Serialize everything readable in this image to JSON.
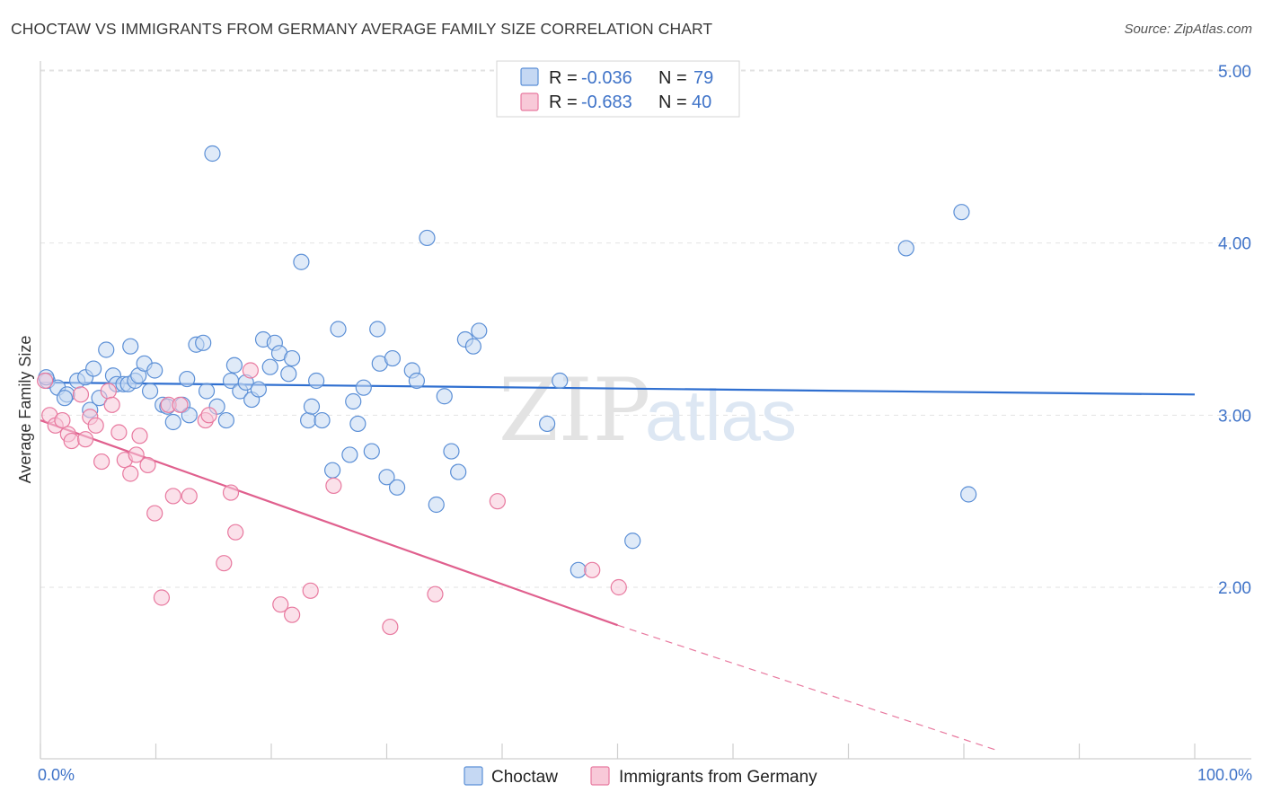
{
  "header": {
    "title": "CHOCTAW VS IMMIGRANTS FROM GERMANY AVERAGE FAMILY SIZE CORRELATION CHART",
    "source": "Source: ZipAtlas.com"
  },
  "watermark": {
    "zip": "ZIP",
    "atlas": "atlas"
  },
  "legend": {
    "rows": [
      {
        "r_label": "R =",
        "r_value": "-0.036",
        "n_label": "N =",
        "n_value": "79",
        "color": "#5b8fd6"
      },
      {
        "r_label": "R =",
        "r_value": "-0.683",
        "n_label": "N =",
        "n_value": "40",
        "color": "#e8799f"
      }
    ]
  },
  "bottom_legend": {
    "series1": "Choctaw",
    "series2": "Immigrants from Germany"
  },
  "chart_data": {
    "type": "scatter",
    "title": "CHOCTAW VS IMMIGRANTS FROM GERMANY AVERAGE FAMILY SIZE CORRELATION CHART",
    "xlabel": "",
    "ylabel": "Average Family Size",
    "xlim": [
      0,
      100
    ],
    "ylim": [
      1.05,
      5.1
    ],
    "x_tick_labels": {
      "min": "0.0%",
      "max": "100.0%"
    },
    "y_ticks": [
      2.0,
      3.0,
      4.0,
      5.0
    ],
    "y_tick_labels": [
      "2.00",
      "3.00",
      "4.00",
      "5.00"
    ],
    "grid": true,
    "series": [
      {
        "name": "Choctaw",
        "color": "#5b8fd6",
        "R": -0.036,
        "N": 79,
        "trend": {
          "x0": 0,
          "y0": 3.19,
          "x1": 100,
          "y1": 3.12
        },
        "points": [
          [
            0.6,
            3.2
          ],
          [
            1.5,
            3.16
          ],
          [
            2.3,
            3.12
          ],
          [
            2.1,
            3.1
          ],
          [
            3.2,
            3.2
          ],
          [
            3.9,
            3.22
          ],
          [
            4.3,
            3.03
          ],
          [
            4.6,
            3.27
          ],
          [
            5.1,
            3.1
          ],
          [
            5.7,
            3.38
          ],
          [
            6.3,
            3.23
          ],
          [
            6.6,
            3.18
          ],
          [
            7.2,
            3.18
          ],
          [
            7.6,
            3.18
          ],
          [
            7.8,
            3.4
          ],
          [
            8.2,
            3.2
          ],
          [
            8.5,
            3.23
          ],
          [
            9.0,
            3.3
          ],
          [
            9.5,
            3.14
          ],
          [
            9.9,
            3.26
          ],
          [
            10.6,
            3.06
          ],
          [
            11.0,
            3.05
          ],
          [
            11.5,
            2.96
          ],
          [
            12.3,
            3.06
          ],
          [
            12.7,
            3.21
          ],
          [
            12.9,
            3.0
          ],
          [
            13.5,
            3.41
          ],
          [
            14.1,
            3.42
          ],
          [
            14.4,
            3.14
          ],
          [
            15.3,
            3.05
          ],
          [
            16.1,
            2.97
          ],
          [
            16.5,
            3.2
          ],
          [
            16.8,
            3.29
          ],
          [
            17.3,
            3.14
          ],
          [
            17.8,
            3.19
          ],
          [
            18.3,
            3.09
          ],
          [
            18.9,
            3.15
          ],
          [
            19.3,
            3.44
          ],
          [
            19.9,
            3.28
          ],
          [
            20.3,
            3.42
          ],
          [
            20.7,
            3.36
          ],
          [
            21.5,
            3.24
          ],
          [
            21.8,
            3.33
          ],
          [
            22.6,
            3.89
          ],
          [
            23.2,
            2.97
          ],
          [
            23.5,
            3.05
          ],
          [
            23.9,
            3.2
          ],
          [
            24.4,
            2.97
          ],
          [
            25.3,
            2.68
          ],
          [
            25.8,
            3.5
          ],
          [
            26.8,
            2.77
          ],
          [
            27.1,
            3.08
          ],
          [
            27.5,
            2.95
          ],
          [
            28.0,
            3.16
          ],
          [
            28.7,
            2.79
          ],
          [
            29.2,
            3.5
          ],
          [
            29.4,
            3.3
          ],
          [
            30.0,
            2.64
          ],
          [
            30.5,
            3.33
          ],
          [
            30.9,
            2.58
          ],
          [
            32.2,
            3.26
          ],
          [
            32.6,
            3.2
          ],
          [
            33.5,
            4.03
          ],
          [
            34.3,
            2.48
          ],
          [
            35.0,
            3.11
          ],
          [
            35.6,
            2.79
          ],
          [
            36.2,
            2.67
          ],
          [
            36.8,
            3.44
          ],
          [
            37.5,
            3.4
          ],
          [
            38.0,
            3.49
          ],
          [
            14.9,
            4.52
          ],
          [
            43.9,
            2.95
          ],
          [
            45.0,
            3.2
          ],
          [
            46.6,
            2.1
          ],
          [
            51.3,
            2.27
          ],
          [
            75.0,
            3.97
          ],
          [
            79.8,
            4.18
          ],
          [
            80.4,
            2.54
          ],
          [
            0.5,
            3.22
          ]
        ]
      },
      {
        "name": "Immigrants from Germany",
        "color": "#e8799f",
        "R": -0.683,
        "N": 40,
        "trend": {
          "x0": 0,
          "y0": 2.97,
          "x1": 50,
          "y1": 1.78,
          "dashed_to": {
            "x": 83,
            "y": 1.05
          }
        },
        "points": [
          [
            0.4,
            3.2
          ],
          [
            0.8,
            3.0
          ],
          [
            1.3,
            2.94
          ],
          [
            1.9,
            2.97
          ],
          [
            2.4,
            2.89
          ],
          [
            2.7,
            2.85
          ],
          [
            3.5,
            3.12
          ],
          [
            3.9,
            2.86
          ],
          [
            4.3,
            2.99
          ],
          [
            4.8,
            2.94
          ],
          [
            5.3,
            2.73
          ],
          [
            5.9,
            3.14
          ],
          [
            6.2,
            3.06
          ],
          [
            6.8,
            2.9
          ],
          [
            7.3,
            2.74
          ],
          [
            7.8,
            2.66
          ],
          [
            8.3,
            2.77
          ],
          [
            8.6,
            2.88
          ],
          [
            9.3,
            2.71
          ],
          [
            9.9,
            2.43
          ],
          [
            10.5,
            1.94
          ],
          [
            11.1,
            3.06
          ],
          [
            11.5,
            2.53
          ],
          [
            12.1,
            3.06
          ],
          [
            12.9,
            2.53
          ],
          [
            14.3,
            2.97
          ],
          [
            14.6,
            3.0
          ],
          [
            15.9,
            2.14
          ],
          [
            16.5,
            2.55
          ],
          [
            16.9,
            2.32
          ],
          [
            18.2,
            3.26
          ],
          [
            20.8,
            1.9
          ],
          [
            21.8,
            1.84
          ],
          [
            23.4,
            1.98
          ],
          [
            25.4,
            2.59
          ],
          [
            30.3,
            1.77
          ],
          [
            34.2,
            1.96
          ],
          [
            39.6,
            2.5
          ],
          [
            47.8,
            2.1
          ],
          [
            50.1,
            2.0
          ]
        ]
      }
    ]
  }
}
